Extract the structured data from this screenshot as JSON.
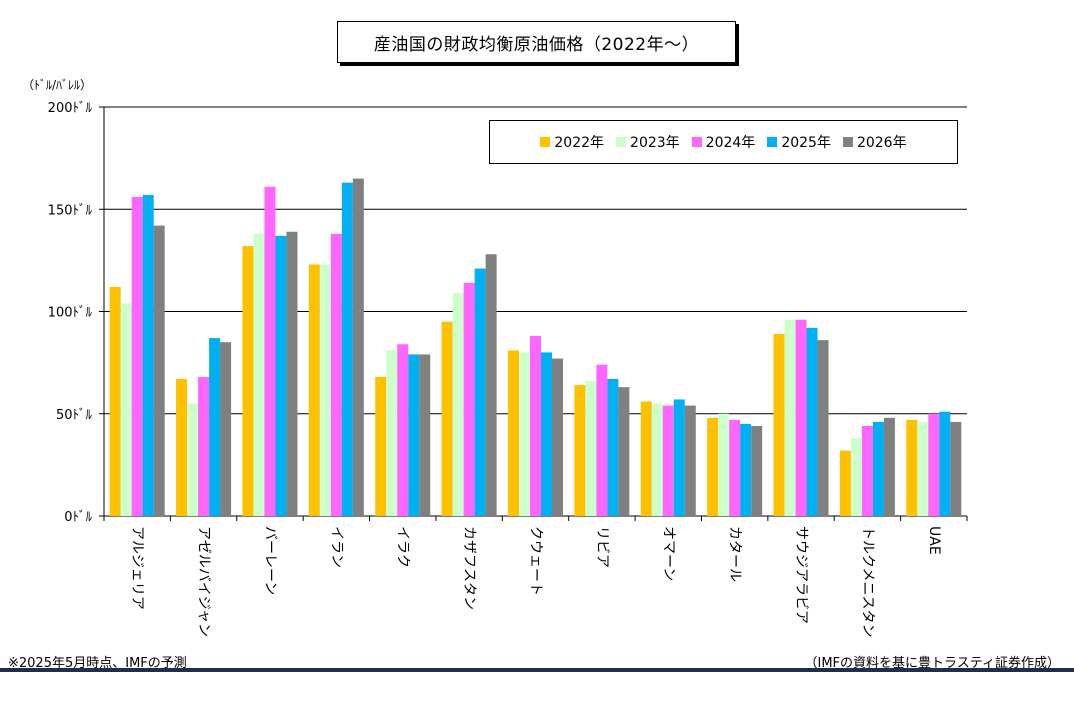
{
  "title": "産油国の財政均衡原油価格（2022年～）",
  "unit_label": "（ﾄﾞﾙ/ﾊﾞﾚﾙ）",
  "footnote": "※2025年5月時点、IMFの予測",
  "source": "（IMFの資料を基に豊トラスティ証券作成）",
  "colors": {
    "2022年": "#FFC000",
    "2023年": "#CCFFCC",
    "2024年": "#FF66FF",
    "2025年": "#00B0F0",
    "2026年": "#808080"
  },
  "chart_data": {
    "type": "bar",
    "title": "産油国の財政均衡原油価格（2022年～）",
    "ylabel": "（ﾄﾞﾙ/ﾊﾞﾚﾙ）",
    "xlabel": "",
    "ylim": [
      0,
      200
    ],
    "yticks": [
      0,
      50,
      100,
      150,
      200
    ],
    "ytick_labels": [
      "0ﾄﾞﾙ",
      "50ﾄﾞﾙ",
      "100ﾄﾞﾙ",
      "150ﾄﾞﾙ",
      "200ﾄﾞﾙ"
    ],
    "grid": true,
    "legend_position": "top-right",
    "categories": [
      "アルジェリア",
      "アゼルバイジャン",
      "バーレーン",
      "イラン",
      "イラク",
      "カザフスタン",
      "クウェート",
      "リビア",
      "オマーン",
      "カタール",
      "サウジアラビア",
      "トルクメニスタン",
      "UAE"
    ],
    "series": [
      {
        "name": "2022年",
        "values": [
          112,
          67,
          132,
          123,
          68,
          95,
          81,
          64,
          56,
          48,
          89,
          32,
          47
        ]
      },
      {
        "name": "2023年",
        "values": [
          104,
          55,
          138,
          123,
          81,
          109,
          80,
          66,
          55,
          50,
          96,
          38,
          46
        ]
      },
      {
        "name": "2024年",
        "values": [
          156,
          68,
          161,
          138,
          84,
          114,
          88,
          74,
          54,
          47,
          96,
          44,
          50
        ]
      },
      {
        "name": "2025年",
        "values": [
          157,
          87,
          137,
          163,
          79,
          121,
          80,
          67,
          57,
          45,
          92,
          46,
          51
        ]
      },
      {
        "name": "2026年",
        "values": [
          142,
          85,
          139,
          165,
          79,
          128,
          77,
          63,
          54,
          44,
          86,
          48,
          46
        ]
      }
    ]
  }
}
